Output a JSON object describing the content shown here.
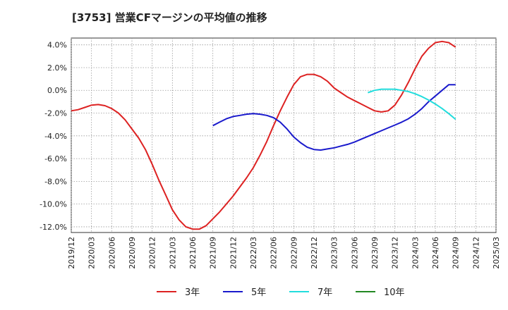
{
  "chart_data": {
    "type": "line",
    "title": "[3753]  営業CFマージンの平均値の推移",
    "xlabel": "",
    "ylabel": "",
    "ylim": [
      -12.5,
      4.6
    ],
    "yticks": [
      4,
      2,
      0,
      -2,
      -4,
      -6,
      -8,
      -10,
      -12
    ],
    "ytick_labels": [
      "4.0%",
      "2.0%",
      "0.0%",
      "-2.0%",
      "-4.0%",
      "-6.0%",
      "-8.0%",
      "-10.0%",
      "-12.0%"
    ],
    "xlim": [
      "2019-12",
      "2025-03"
    ],
    "xtick_labels": [
      "2019/12",
      "2020/03",
      "2020/06",
      "2020/09",
      "2020/12",
      "2021/03",
      "2021/06",
      "2021/09",
      "2021/12",
      "2022/03",
      "2022/06",
      "2022/09",
      "2022/12",
      "2023/03",
      "2023/06",
      "2023/09",
      "2023/12",
      "2024/03",
      "2024/06",
      "2024/09",
      "2024/12",
      "2025/03"
    ],
    "grid": true,
    "legend_position": "bottom",
    "series": [
      {
        "name": "3年",
        "color": "#dd2222",
        "x": [
          "2019-12",
          "2020-01",
          "2020-02",
          "2020-03",
          "2020-04",
          "2020-05",
          "2020-06",
          "2020-07",
          "2020-08",
          "2020-09",
          "2020-10",
          "2020-11",
          "2020-12",
          "2021-01",
          "2021-02",
          "2021-03",
          "2021-04",
          "2021-05",
          "2021-06",
          "2021-07",
          "2021-08",
          "2021-09",
          "2021-10",
          "2021-11",
          "2021-12",
          "2022-01",
          "2022-02",
          "2022-03",
          "2022-04",
          "2022-05",
          "2022-06",
          "2022-07",
          "2022-08",
          "2022-09",
          "2022-10",
          "2022-11",
          "2022-12",
          "2023-01",
          "2023-02",
          "2023-03",
          "2023-04",
          "2023-05",
          "2023-06",
          "2023-07",
          "2023-08",
          "2023-09",
          "2023-10",
          "2023-11",
          "2023-12",
          "2024-01",
          "2024-02",
          "2024-03",
          "2024-04",
          "2024-05",
          "2024-06",
          "2024-07",
          "2024-08",
          "2024-09"
        ],
        "values": [
          -1.8,
          -1.7,
          -1.5,
          -1.3,
          -1.25,
          -1.35,
          -1.6,
          -2.0,
          -2.6,
          -3.4,
          -4.2,
          -5.2,
          -6.5,
          -7.9,
          -9.2,
          -10.5,
          -11.4,
          -12.0,
          -12.2,
          -12.2,
          -11.9,
          -11.3,
          -10.7,
          -10.0,
          -9.3,
          -8.5,
          -7.7,
          -6.8,
          -5.7,
          -4.5,
          -3.1,
          -1.8,
          -0.6,
          0.5,
          1.2,
          1.4,
          1.4,
          1.2,
          0.8,
          0.2,
          -0.2,
          -0.6,
          -0.9,
          -1.2,
          -1.5,
          -1.8,
          -1.9,
          -1.8,
          -1.3,
          -0.4,
          0.7,
          1.9,
          3.0,
          3.7,
          4.2,
          4.3,
          4.2,
          3.8
        ]
      },
      {
        "name": "5年",
        "color": "#1a1acc",
        "x": [
          "2021-09",
          "2021-10",
          "2021-11",
          "2021-12",
          "2022-01",
          "2022-02",
          "2022-03",
          "2022-04",
          "2022-05",
          "2022-06",
          "2022-07",
          "2022-08",
          "2022-09",
          "2022-10",
          "2022-11",
          "2022-12",
          "2023-01",
          "2023-02",
          "2023-03",
          "2023-04",
          "2023-05",
          "2023-06",
          "2023-07",
          "2023-08",
          "2023-09",
          "2023-10",
          "2023-11",
          "2023-12",
          "2024-01",
          "2024-02",
          "2024-03",
          "2024-04",
          "2024-05",
          "2024-06",
          "2024-07",
          "2024-08",
          "2024-09"
        ],
        "values": [
          -3.1,
          -2.8,
          -2.5,
          -2.3,
          -2.2,
          -2.1,
          -2.05,
          -2.1,
          -2.2,
          -2.4,
          -2.8,
          -3.4,
          -4.1,
          -4.6,
          -5.0,
          -5.2,
          -5.25,
          -5.15,
          -5.05,
          -4.9,
          -4.75,
          -4.55,
          -4.3,
          -4.05,
          -3.8,
          -3.55,
          -3.3,
          -3.05,
          -2.8,
          -2.5,
          -2.1,
          -1.6,
          -1.0,
          -0.5,
          0.0,
          0.5,
          0.5
        ]
      },
      {
        "name": "7年",
        "color": "#22dddd",
        "x": [
          "2023-08",
          "2023-09",
          "2023-10",
          "2023-11",
          "2023-12",
          "2024-01",
          "2024-02",
          "2024-03",
          "2024-04",
          "2024-05",
          "2024-06",
          "2024-07",
          "2024-08",
          "2024-09"
        ],
        "values": [
          -0.2,
          0.0,
          0.1,
          0.1,
          0.1,
          0.0,
          -0.1,
          -0.3,
          -0.55,
          -0.85,
          -1.2,
          -1.6,
          -2.05,
          -2.55
        ]
      },
      {
        "name": "10年",
        "color": "#228822",
        "x": [],
        "values": []
      }
    ]
  }
}
